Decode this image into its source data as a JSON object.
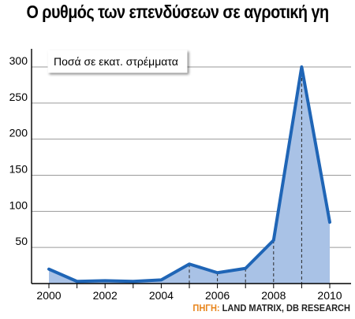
{
  "title": "Ο ρυθμός των επενδύσεων σε αγροτική γη",
  "source_label": "ΠΗΓΗ:",
  "source_text": "LAND MATRIX, DB RESEARCH",
  "colors": {
    "line": "#1f65b6",
    "fill": "#a9c2e6",
    "accent": "#e8851c"
  },
  "chart_data": {
    "type": "area",
    "annotation": "Ποσά σε εκατ. στρέμματα",
    "x": [
      2000,
      2001,
      2002,
      2003,
      2004,
      2005,
      2006,
      2007,
      2008,
      2009,
      2010
    ],
    "values": [
      20,
      3,
      4,
      3,
      5,
      27,
      15,
      21,
      60,
      300,
      85
    ],
    "xlim": [
      2000,
      2010
    ],
    "ylim": [
      0,
      320
    ],
    "xticks": [
      2000,
      2002,
      2004,
      2006,
      2008,
      2010
    ],
    "yticks": [
      50,
      100,
      150,
      200,
      250,
      300
    ],
    "dashed_dropdowns": [
      2005,
      2006,
      2007,
      2008,
      2009
    ],
    "grid": "horizontal",
    "xlabel": "",
    "ylabel": ""
  }
}
